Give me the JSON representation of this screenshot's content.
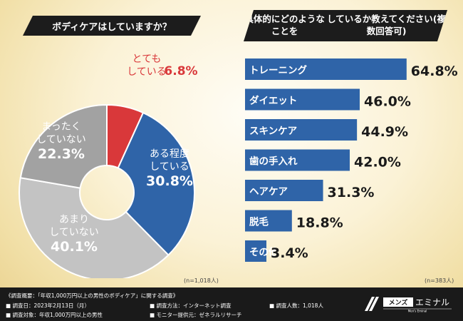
{
  "left_chart": {
    "title": "ボディケアはしていますか？",
    "n_label": "(n=1,018人)",
    "colors": [
      "#d9383a",
      "#2f64a8",
      "#c3c3c3",
      "#a2a2a2"
    ]
  },
  "right_chart": {
    "title_line1": "具体的にどのようなことを",
    "title_line2": "しているか教えてください(複数回答可)",
    "n_label": "(n=383人)",
    "bar_color": "#2f64a8"
  },
  "chart_data": [
    {
      "type": "pie",
      "title": "ボディケアはしていますか？",
      "slices": [
        {
          "label_line1": "とても",
          "label_line2": "している",
          "value": 6.8,
          "display": "6.8%"
        },
        {
          "label_line1": "ある程度",
          "label_line2": "している",
          "value": 30.8,
          "display": "30.8%"
        },
        {
          "label_line1": "あまり",
          "label_line2": "していない",
          "value": 40.1,
          "display": "40.1%"
        },
        {
          "label_line1": "まったく",
          "label_line2": "していない",
          "value": 22.3,
          "display": "22.3%"
        }
      ]
    },
    {
      "type": "bar",
      "orientation": "horizontal",
      "title": "具体的にどのようなことをしているか教えてください(複数回答可)",
      "categories": [
        "トレーニング",
        "ダイエット",
        "スキンケア",
        "歯の手入れ",
        "ヘアケア",
        "脱毛",
        "その他"
      ],
      "values": [
        64.8,
        46.0,
        44.9,
        42.0,
        31.3,
        18.8,
        3.4
      ],
      "displays": [
        "64.8%",
        "46.0%",
        "44.9%",
        "42.0%",
        "31.3%",
        "18.8%",
        "3.4%"
      ]
    }
  ],
  "footer": {
    "title": "《調査概要：「年収1,000万円以上の男性のボディケア」に関する調査》",
    "date": "■ 調査日：2023年2月13日（月）",
    "method": "■ 調査方法：インターネット調査",
    "count": "■ 調査人数：1,018人",
    "target": "■ 調査対象：年収1,000万円以上の男性",
    "monitor": "■ モニター提供元：ゼネラルリサーチ",
    "logo_text": "メンズエミナル",
    "logo_sub": "Men's Eminal"
  }
}
